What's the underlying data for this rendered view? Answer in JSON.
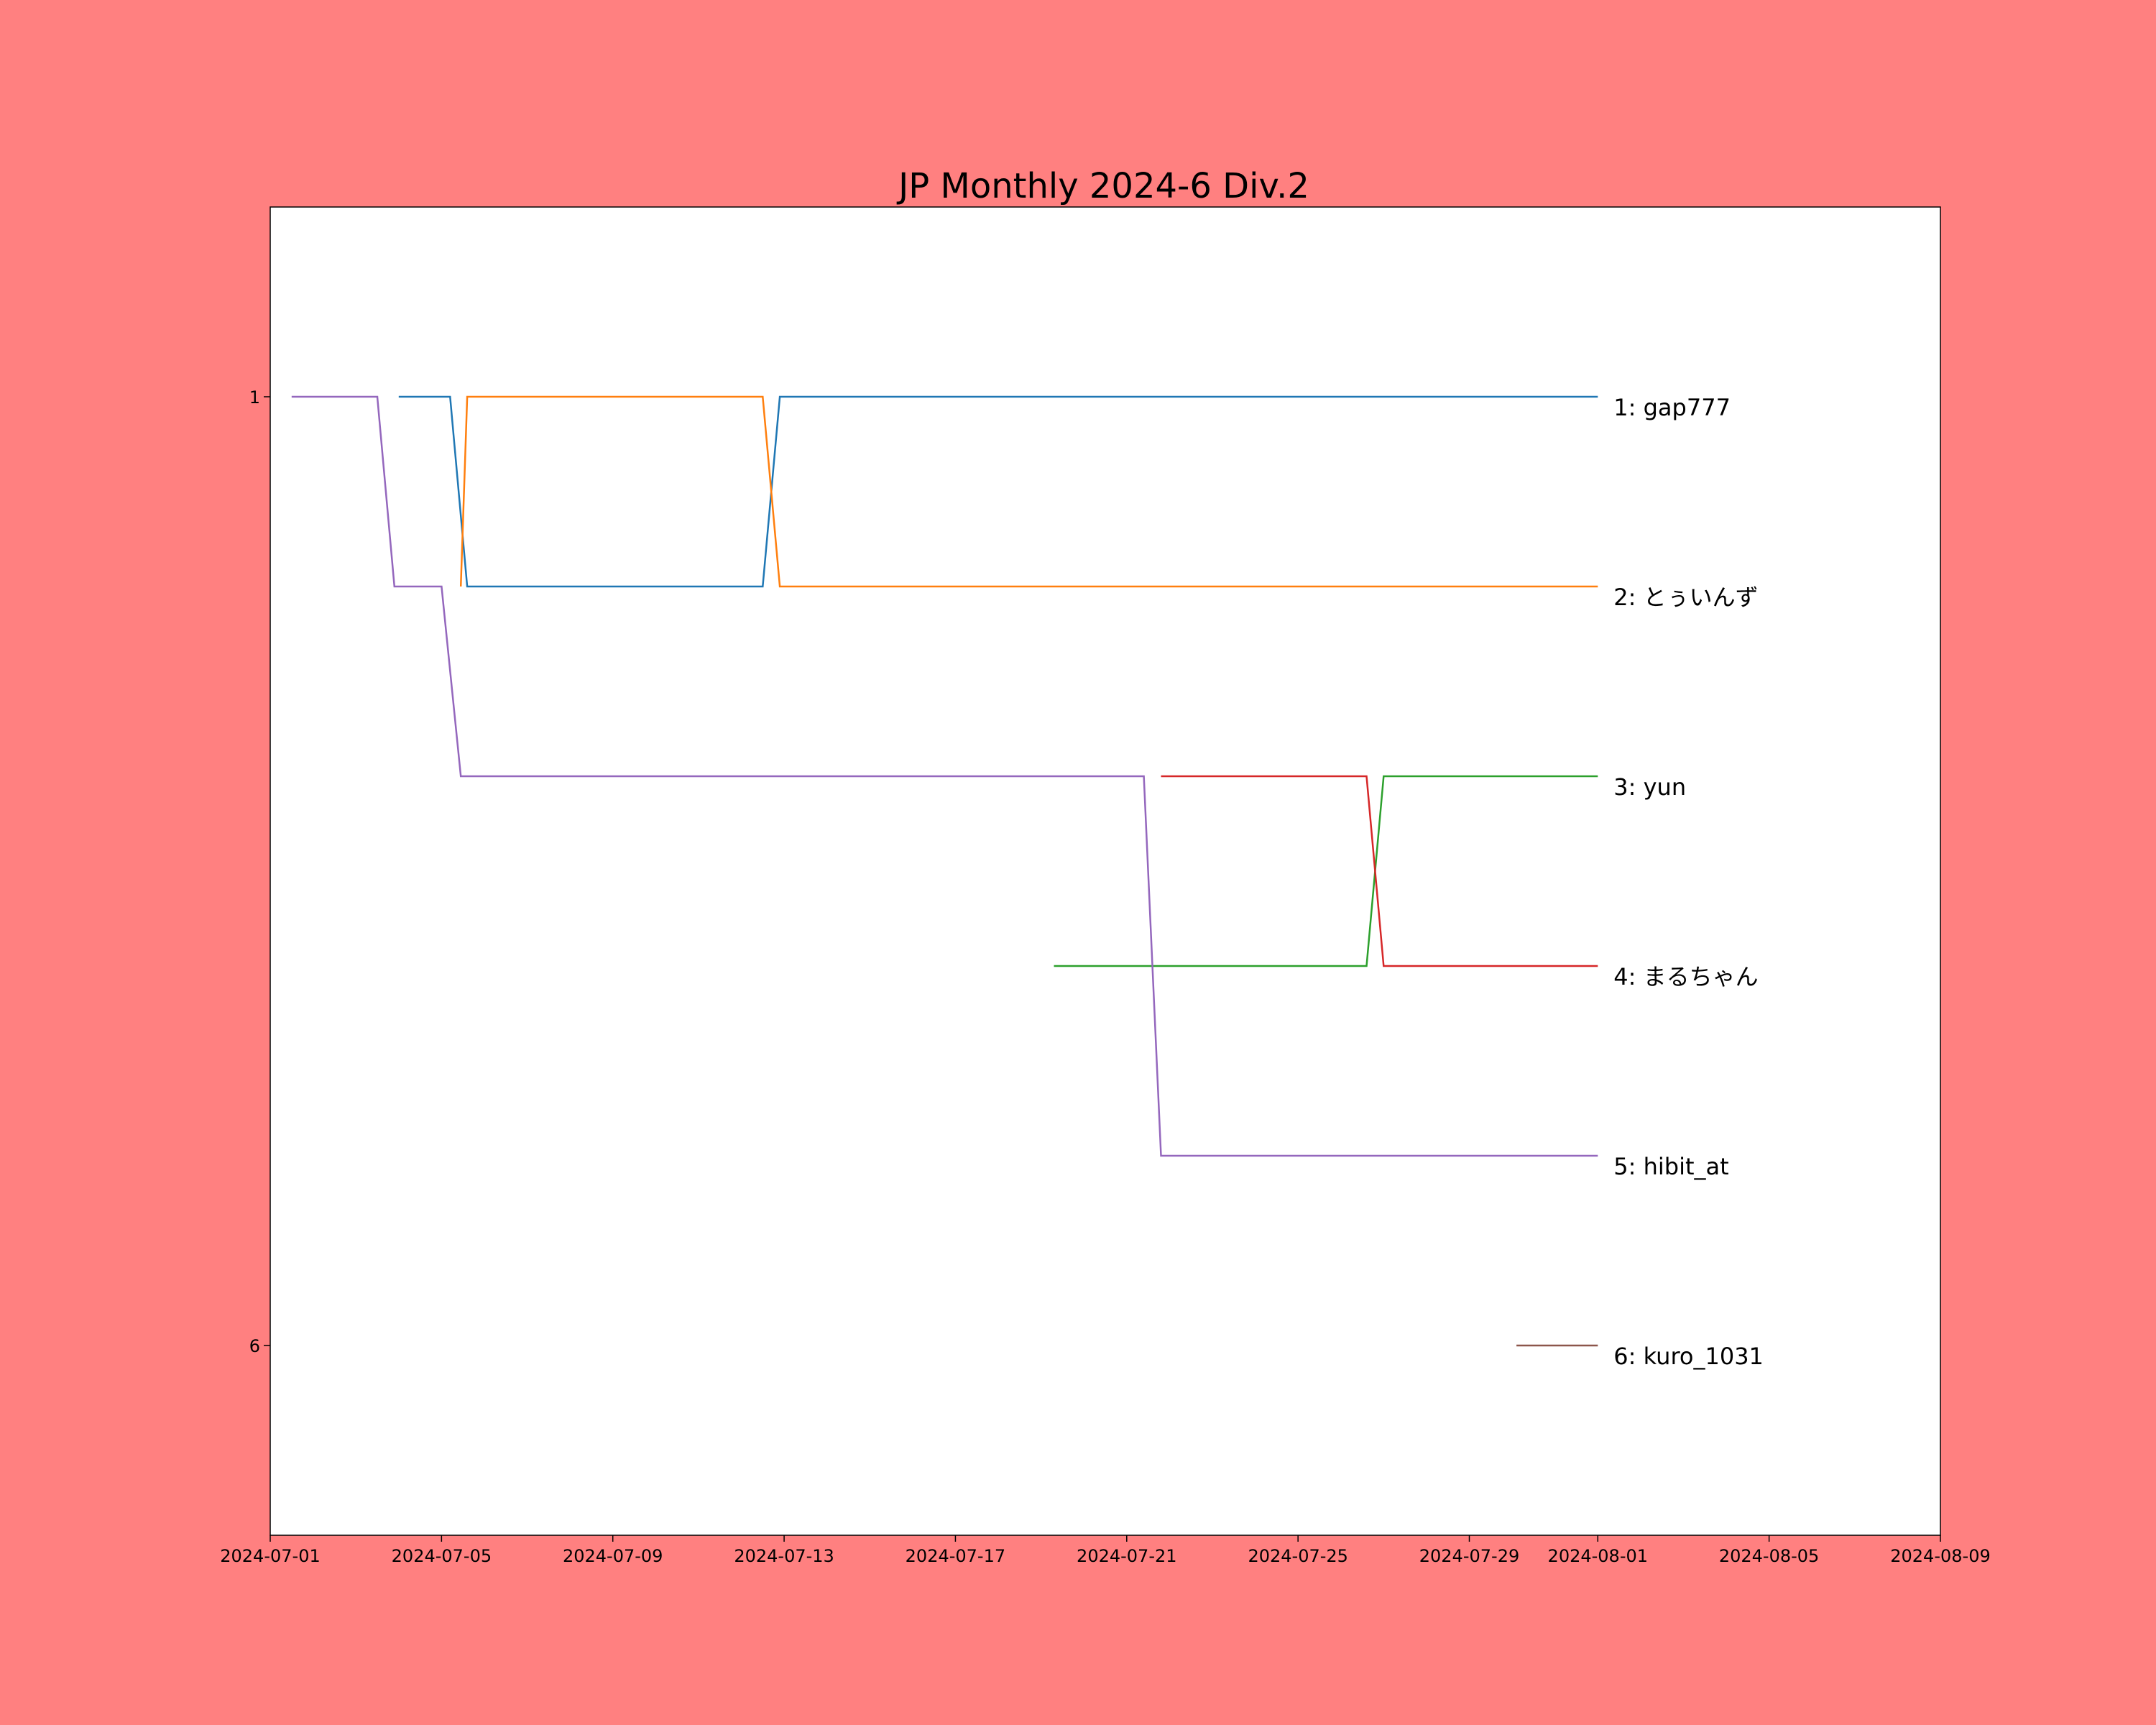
{
  "chart_data": {
    "type": "line",
    "title": "JP Monthly 2024-6 Div.2",
    "xlabel": "",
    "ylabel": "",
    "x_axis": {
      "type": "date",
      "range": [
        "2024-07-01",
        "2024-08-09"
      ],
      "tick_labels": [
        "2024-07-01",
        "2024-07-05",
        "2024-07-09",
        "2024-07-13",
        "2024-07-17",
        "2024-07-21",
        "2024-07-25",
        "2024-07-29",
        "2024-08-01",
        "2024-08-05",
        "2024-08-09"
      ]
    },
    "y_axis": {
      "range": [
        7,
        0
      ],
      "inverted": true,
      "tick_labels": [
        "1",
        "6"
      ]
    },
    "grid": false,
    "series": [
      {
        "name": "1: gap777",
        "color": "#1f77b4",
        "points": [
          [
            "2024-07-04",
            1
          ],
          [
            "2024-07-05.2",
            1
          ],
          [
            "2024-07-05.6",
            2
          ],
          [
            "2024-07-12.5",
            2
          ],
          [
            "2024-07-12.9",
            1
          ],
          [
            "2024-08-01",
            1
          ]
        ]
      },
      {
        "name": "2: とぅいんず",
        "color": "#ff7f0e",
        "points": [
          [
            "2024-07-05.45",
            2
          ],
          [
            "2024-07-05.6",
            1
          ],
          [
            "2024-07-12.5",
            1
          ],
          [
            "2024-07-12.9",
            2
          ],
          [
            "2024-08-01",
            2
          ]
        ]
      },
      {
        "name": "3: yun",
        "color": "#2ca02c",
        "points": [
          [
            "2024-07-19.3",
            4
          ],
          [
            "2024-07-26.6",
            4
          ],
          [
            "2024-07-27",
            3
          ],
          [
            "2024-08-01",
            3
          ]
        ]
      },
      {
        "name": "4: まるちゃん",
        "color": "#d62728",
        "points": [
          [
            "2024-07-21.8",
            3
          ],
          [
            "2024-07-26.6",
            3
          ],
          [
            "2024-07-27",
            4
          ],
          [
            "2024-08-01",
            4
          ]
        ]
      },
      {
        "name": "5: hibit_at",
        "color": "#9467bd",
        "points": [
          [
            "2024-07-01.5",
            1
          ],
          [
            "2024-07-03.5",
            1
          ],
          [
            "2024-07-03.9",
            2
          ],
          [
            "2024-07-05",
            2
          ],
          [
            "2024-07-05.45",
            3
          ],
          [
            "2024-07-21.4",
            3
          ],
          [
            "2024-07-21.8",
            5
          ],
          [
            "2024-08-01",
            5
          ]
        ]
      },
      {
        "name": "6: kuro_1031",
        "color": "#8c564b",
        "points": [
          [
            "2024-07-30.1",
            6
          ],
          [
            "2024-08-01",
            6
          ]
        ]
      }
    ]
  }
}
